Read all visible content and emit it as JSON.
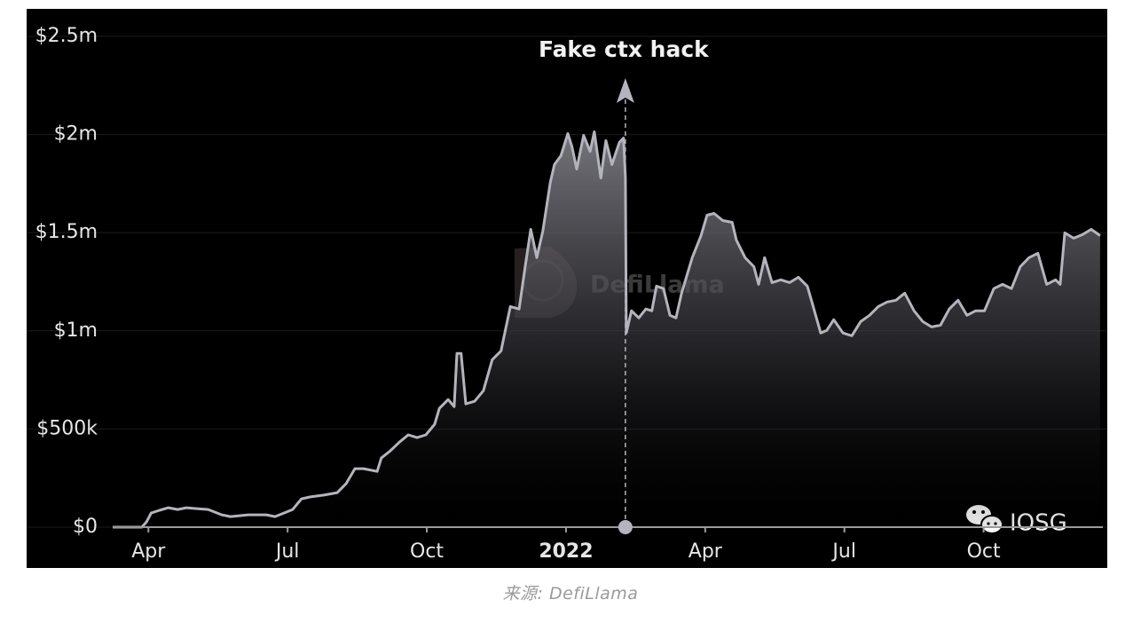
{
  "chart_data": {
    "type": "area",
    "annotations": [
      {
        "text": "Fake ctx hack",
        "x": 1.28
      }
    ],
    "watermarks": [
      "DefiLlama",
      "IOSG"
    ],
    "caption": "来源: DefiLlama",
    "xlim": [
      -9.77,
      11.57
    ],
    "xticks": [
      {
        "value": -9,
        "label": "Apr"
      },
      {
        "value": -6,
        "label": "Jul"
      },
      {
        "value": -3,
        "label": "Oct"
      },
      {
        "value": 0,
        "label": "2022"
      },
      {
        "value": 3,
        "label": "Apr"
      },
      {
        "value": 6,
        "label": "Jul"
      },
      {
        "value": 9,
        "label": "Oct"
      }
    ],
    "ylim": [
      0,
      2640000
    ],
    "yticks": [
      {
        "value": 0,
        "label": "$0"
      },
      {
        "value": 500000,
        "label": "$500k"
      },
      {
        "value": 1000000,
        "label": "$1m"
      },
      {
        "value": 1500000,
        "label": "$1.5m"
      },
      {
        "value": 2000000,
        "label": "$2m"
      },
      {
        "value": 2500000,
        "label": "$2.5m"
      }
    ],
    "grid": true,
    "x": [
      -9.77,
      -9.14,
      -9.04,
      -8.94,
      -8.76,
      -8.57,
      -8.37,
      -8.18,
      -7.99,
      -7.71,
      -7.42,
      -7.23,
      -6.85,
      -6.46,
      -6.27,
      -6.08,
      -5.89,
      -5.7,
      -5.51,
      -5.22,
      -4.93,
      -4.74,
      -4.55,
      -4.36,
      -4.07,
      -3.98,
      -3.79,
      -3.59,
      -3.4,
      -3.21,
      -3.02,
      -2.83,
      -2.73,
      -2.54,
      -2.41,
      -2.35,
      -2.26,
      -2.16,
      -1.97,
      -1.78,
      -1.59,
      -1.4,
      -1.2,
      -1.01,
      -0.88,
      -0.76,
      -0.63,
      -0.5,
      -0.34,
      -0.25,
      -0.11,
      0.04,
      0.13,
      0.23,
      0.38,
      0.52,
      0.61,
      0.75,
      0.86,
      0.99,
      1.15,
      1.24,
      1.28,
      1.3,
      1.41,
      1.57,
      1.72,
      1.85,
      1.95,
      2.1,
      2.24,
      2.37,
      2.49,
      2.72,
      2.91,
      3.04,
      3.19,
      3.38,
      3.58,
      3.67,
      3.86,
      4.05,
      4.15,
      4.28,
      4.44,
      4.63,
      4.82,
      5.01,
      5.2,
      5.3,
      5.49,
      5.62,
      5.77,
      5.97,
      6.16,
      6.35,
      6.54,
      6.73,
      6.92,
      7.11,
      7.3,
      7.5,
      7.69,
      7.88,
      8.07,
      8.26,
      8.45,
      8.64,
      8.83,
      9.02,
      9.22,
      9.41,
      9.6,
      9.79,
      9.98,
      10.17,
      10.36,
      10.55,
      10.65,
      10.75,
      10.94,
      11.13,
      11.32,
      11.51
    ],
    "series": [
      {
        "color": "#b4b4bc",
        "values": [
          0,
          0,
          27000,
          72000,
          86000,
          99000,
          90000,
          99000,
          95000,
          90000,
          63000,
          54000,
          63000,
          63000,
          54000,
          72000,
          90000,
          144000,
          154000,
          163000,
          176000,
          221000,
          298000,
          298000,
          284000,
          352000,
          388000,
          433000,
          470000,
          456000,
          470000,
          524000,
          605000,
          650000,
          614000,
          885000,
          885000,
          628000,
          641000,
          695000,
          853000,
          898000,
          1124000,
          1111000,
          1327000,
          1517000,
          1373000,
          1508000,
          1756000,
          1847000,
          1892000,
          2005000,
          1937000,
          1824000,
          1996000,
          1914000,
          2014000,
          1779000,
          1969000,
          1847000,
          1960000,
          1982000,
          1779000,
          989000,
          1102000,
          1066000,
          1111000,
          1102000,
          1228000,
          1215000,
          1079000,
          1066000,
          1192000,
          1373000,
          1485000,
          1589000,
          1598000,
          1562000,
          1553000,
          1463000,
          1373000,
          1327000,
          1237000,
          1373000,
          1246000,
          1260000,
          1246000,
          1273000,
          1228000,
          1147000,
          989000,
          1002000,
          1057000,
          989000,
          975000,
          1047000,
          1079000,
          1124000,
          1147000,
          1156000,
          1192000,
          1102000,
          1047000,
          1020000,
          1029000,
          1111000,
          1156000,
          1079000,
          1102000,
          1102000,
          1215000,
          1237000,
          1215000,
          1327000,
          1373000,
          1395000,
          1237000,
          1260000,
          1237000,
          1499000,
          1472000,
          1490000,
          1517000,
          1485000
        ]
      }
    ]
  }
}
